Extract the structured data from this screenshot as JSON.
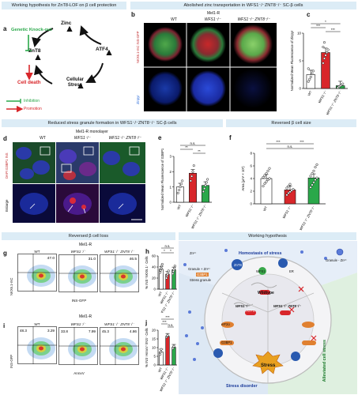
{
  "headers": {
    "a": "Working hypothesis for ZnT8-LOF on β cell protection",
    "b": "Abolished zinc transportation in WFS1⁻/⁻ZNT8⁻/⁻ SC-β cells",
    "d": "Reduced stress granule formation in WFS1⁻/⁻ZNT8⁻/⁻ SC-β cells",
    "f": "Reversed β cell size",
    "g": "Reversed β cell loss",
    "k": "Working hypothesis"
  },
  "panels": {
    "a": {
      "letter": "a",
      "nodes": {
        "zinc": "Zinc",
        "atf4": "ATF4",
        "stress": "Cellular\nStress",
        "znt8": "ZnT8",
        "death": "Cell death"
      },
      "knockout": "Genetic Knock-out",
      "legend_inhibition": "Inhibition",
      "legend_promotion": "Promotion",
      "colors": {
        "inhibition": "#2aa84a",
        "promotion": "#d8262a"
      }
    },
    "b": {
      "letter": "b",
      "cell_line": "Mel1-R",
      "columns": [
        "WT",
        "WFS1⁻/⁻",
        "WFS1⁻/⁻ ZNT8⁻/⁻"
      ],
      "row_labels": [
        "NKX6.1-mC INS-GFP",
        "Zinpyr"
      ]
    },
    "c": {
      "letter": "c",
      "ylabel": "Normalized Mean Fluorescence of Zinpyr",
      "yticks": [
        "0",
        "5",
        "10"
      ],
      "categories": [
        "WT",
        "WFS1⁻/⁻",
        "WFS1⁻/⁻ ZNT8⁻/⁻"
      ],
      "sig": [
        "*",
        "***",
        "***"
      ]
    },
    "d": {
      "letter": "d",
      "cell_line": "Mel1-R monolayer",
      "columns": [
        "WT",
        "WFS1⁻/⁻",
        "WFS1⁻/⁻ ZNT8⁻/⁻"
      ],
      "row_labels": [
        "DAPI G3BP1 INS",
        "Enlarge"
      ]
    },
    "e": {
      "letter": "e",
      "ylabel": "Normalized Mean Fluorescence of G3BP1",
      "yticks": [
        "0",
        "1",
        "2",
        "3"
      ],
      "categories": [
        "WT",
        "WFS1⁻/⁻",
        "WFS1⁻/⁻ ZNT8⁻/⁻"
      ],
      "sig": [
        "n.s.",
        "**",
        "**"
      ]
    },
    "f": {
      "letter": "f",
      "ylabel": "Area (μm² × 10²)",
      "yticks": [
        "0",
        "2",
        "4",
        "6",
        "8"
      ],
      "categories": [
        "WT",
        "WFS1⁻/⁻",
        "WFS1⁻/⁻ ZNT8⁻/⁻"
      ],
      "sig": [
        "***",
        "n.s.",
        "***"
      ]
    },
    "g": {
      "letter": "g",
      "cell_line": "Mel1-R",
      "columns": [
        "WT",
        "WFS1⁻/⁻",
        "WFS1⁻/⁻ ZNT8⁻/⁻"
      ],
      "values": [
        "47.0",
        "31.0",
        "46.5"
      ],
      "xlabel": "INS-GFP",
      "ylabel": "NKX6.1-mC"
    },
    "h": {
      "letter": "h",
      "ylabel": "% INS⁺NKX6.1⁺ Cells",
      "yticks": [
        "0",
        "20",
        "40",
        "60"
      ],
      "categories": [
        "WT",
        "WFS1⁻/⁻",
        "WFS1⁻/⁻ ZNT8⁻/⁻"
      ],
      "sig": [
        "*",
        "*",
        "n.s."
      ]
    },
    "i": {
      "letter": "i",
      "cell_line": "Mel1-R",
      "columns": [
        "WT",
        "WFS1⁻/⁻",
        "WFS1⁻/⁻ ZNT8⁻/⁻"
      ],
      "quadrants": [
        [
          "48.3",
          "3.29"
        ],
        [
          "33.8",
          "7.99"
        ],
        [
          "45.3",
          "4.86"
        ]
      ],
      "xlabel": "AnnxV",
      "ylabel": "INS-GFP"
    },
    "j": {
      "letter": "j",
      "ylabel": "% INS⁺AnnxV⁺/INS⁺ Cells",
      "yticks": [
        "0",
        "5",
        "10",
        "15",
        "20"
      ],
      "categories": [
        "WT",
        "WFS1⁻/⁻",
        "WFS1⁻/⁻ ZNT8⁻/⁻"
      ],
      "sig": [
        "***",
        "n.s.",
        "***"
      ]
    },
    "k": {
      "letter": "k",
      "homostasis": "Homostasis of stress",
      "wildtype": "Wildtype",
      "wfs1": "WFS1⁻/⁻",
      "dko": "WFS1⁻/⁻ ZNT8⁻/⁻",
      "disorder": "Stress disorder",
      "alleviated": "Alleviated cell stress",
      "stress": "Stress",
      "zn": "Zn²⁺",
      "granule_zn_left": "Granule + Zn²⁺",
      "granule_zn_right": "Granule - Zn²⁺",
      "g3bp1": "G3BP1",
      "stress_granule": "Stress granule",
      "er": "ER",
      "znt8": "ZnT8",
      "wfs1_protein": "WFS1",
      "atf4": "ATF4",
      "eif2a": "eIF2α"
    }
  },
  "chart_data": [
    {
      "type": "scatter",
      "panel": "c",
      "categories": [
        "WT",
        "WFS1⁻/⁻",
        "WFS1⁻/⁻ ZNT8⁻/⁻"
      ],
      "ylim": [
        0,
        12
      ],
      "bars": [
        3.0,
        7.8,
        0.6
      ],
      "points": [
        [
          1.5,
          2.0,
          2.5,
          3.2,
          3.8,
          4.3
        ],
        [
          5.5,
          6.5,
          7.2,
          7.8,
          8.4,
          9.0,
          10.0
        ],
        [
          0.2,
          0.4,
          0.6,
          0.8,
          1.0
        ]
      ],
      "colors": [
        "#ffffff",
        "#d8262a",
        "#2aa84a"
      ]
    },
    {
      "type": "scatter",
      "panel": "e",
      "categories": [
        "WT",
        "WFS1⁻/⁻",
        "WFS1⁻/⁻ ZNT8⁻/⁻"
      ],
      "ylim": [
        0,
        3
      ],
      "bars": [
        1.0,
        1.9,
        1.1
      ],
      "points": [
        [
          0.6,
          0.8,
          1.0,
          1.2,
          1.4
        ],
        [
          1.4,
          1.7,
          2.0,
          2.4
        ],
        [
          0.7,
          0.9,
          1.1,
          1.3,
          1.5
        ]
      ],
      "colors": [
        "#ffffff",
        "#d8262a",
        "#2aa84a"
      ]
    },
    {
      "type": "scatter",
      "panel": "f",
      "categories": [
        "WT",
        "WFS1⁻/⁻",
        "WFS1⁻/⁻ ZNT8⁻/⁻"
      ],
      "ylim": [
        0,
        8
      ],
      "bars": [
        4.0,
        2.2,
        4.1
      ],
      "points": [
        [
          2.8,
          3.2,
          3.5,
          3.8,
          4.0,
          4.2,
          4.5,
          4.8,
          5.2,
          5.6
        ],
        [
          1.4,
          1.7,
          1.9,
          2.1,
          2.3,
          2.5,
          2.8,
          3.1
        ],
        [
          2.6,
          3.0,
          3.4,
          3.8,
          4.1,
          4.4,
          4.8,
          5.2,
          5.8,
          6.2
        ]
      ],
      "colors": [
        "#ffffff",
        "#d8262a",
        "#2aa84a"
      ]
    },
    {
      "type": "scatter",
      "panel": "h",
      "categories": [
        "WT",
        "WFS1⁻/⁻",
        "WFS1⁻/⁻ ZNT8⁻/⁻"
      ],
      "ylim": [
        0,
        60
      ],
      "bars": [
        36,
        27,
        35
      ],
      "points": [
        [
          30,
          34,
          38,
          42,
          45
        ],
        [
          20,
          24,
          27,
          30,
          33
        ],
        [
          28,
          32,
          35,
          38,
          42
        ]
      ],
      "colors": [
        "#ffffff",
        "#d8262a",
        "#2aa84a"
      ]
    },
    {
      "type": "scatter",
      "panel": "j",
      "categories": [
        "WT",
        "WFS1⁻/⁻",
        "WFS1⁻/⁻ ZNT8⁻/⁻"
      ],
      "ylim": [
        0,
        20
      ],
      "bars": [
        7.5,
        16.5,
        10.2
      ],
      "points": [
        [
          6.0,
          7.5,
          9.0
        ],
        [
          16.0,
          16.5,
          17.0
        ],
        [
          9.5,
          10.2,
          10.8
        ]
      ],
      "colors": [
        "#ffffff",
        "#d8262a",
        "#2aa84a"
      ]
    }
  ]
}
